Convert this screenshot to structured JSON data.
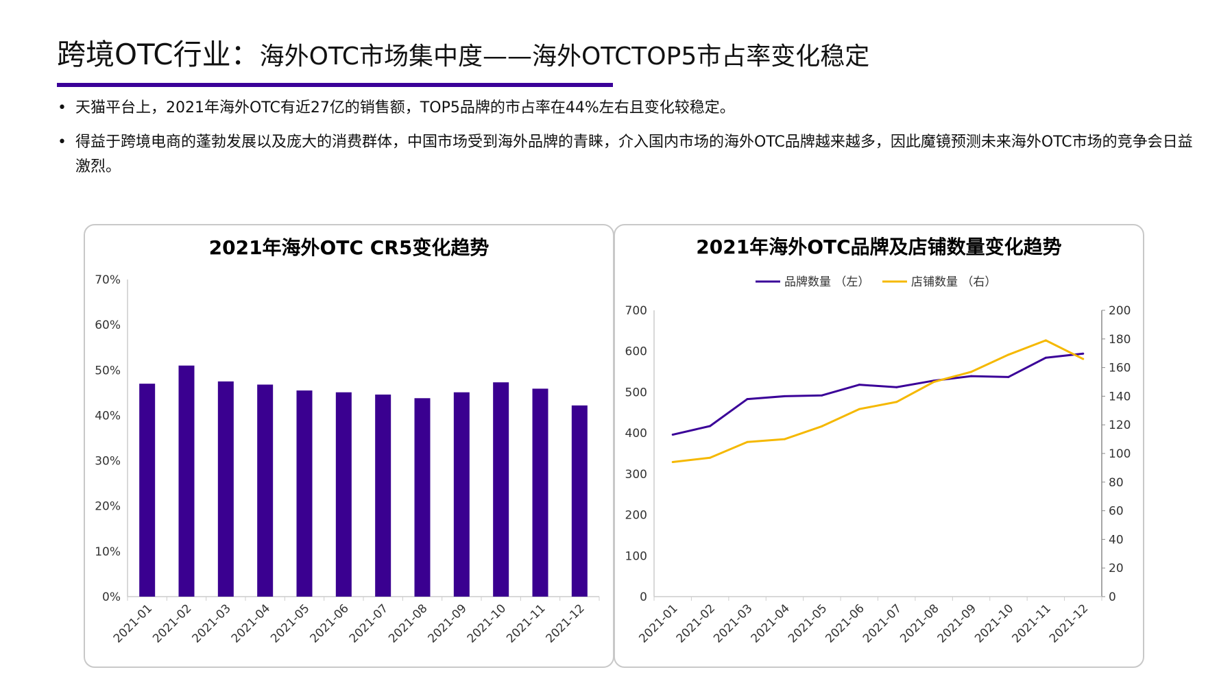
{
  "header": {
    "title_main": "跨境OTC行业：",
    "title_sub": "海外OTC市场集中度——海外OTCTOP5市占率变化稳定",
    "accent": "#3a0098"
  },
  "bullets": [
    "天猫平台上，2021年海外OTC有近27亿的销售额，TOP5品牌的市占率在44%左右且变化较稳定。",
    "得益于跨境电商的蓬勃发展以及庞大的消费群体，中国市场受到海外品牌的青睐，介入国内市场的海外OTC品牌越来越多，因此魔镜预测未来海外OTC市场的竞争会日益激烈。"
  ],
  "chart_data": [
    {
      "type": "bar",
      "title": "2021年海外OTC CR5变化趋势",
      "categories": [
        "2021-01",
        "2021-02",
        "2021-03",
        "2021-04",
        "2021-05",
        "2021-06",
        "2021-07",
        "2021-08",
        "2021-09",
        "2021-10",
        "2021-11",
        "2021-12"
      ],
      "values": [
        47.0,
        51.0,
        47.5,
        46.8,
        45.5,
        45.1,
        44.6,
        43.8,
        45.1,
        47.3,
        45.9,
        42.2
      ],
      "ylim": [
        0,
        70
      ],
      "yticks": [
        "0%",
        "10%",
        "20%",
        "30%",
        "40%",
        "50%",
        "60%",
        "70%"
      ],
      "color": "#3a0090",
      "grid": false
    },
    {
      "type": "line",
      "title": "2021年海外OTC品牌及店铺数量变化趋势",
      "categories": [
        "2021-01",
        "2021-02",
        "2021-03",
        "2021-04",
        "2021-05",
        "2021-06",
        "2021-07",
        "2021-08",
        "2021-09",
        "2021-10",
        "2021-11",
        "2021-12"
      ],
      "legend_position": "top",
      "series": [
        {
          "name": "品牌数量 （左）",
          "axis": "left",
          "color": "#3a0098",
          "values": [
            396,
            417,
            483,
            490,
            492,
            518,
            512,
            528,
            539,
            537,
            584,
            594
          ]
        },
        {
          "name": "店铺数量 （右）",
          "axis": "right",
          "color": "#f5b800",
          "values": [
            94,
            97,
            108,
            110,
            119,
            131,
            136,
            150,
            157,
            169,
            179,
            166
          ]
        }
      ],
      "ylim_left": [
        0,
        700
      ],
      "yticks_left": [
        "0",
        "100",
        "200",
        "300",
        "400",
        "500",
        "600",
        "700"
      ],
      "ylim_right": [
        0,
        200
      ],
      "yticks_right": [
        "0",
        "20",
        "40",
        "60",
        "80",
        "100",
        "120",
        "140",
        "160",
        "180",
        "200"
      ],
      "grid": false
    }
  ]
}
